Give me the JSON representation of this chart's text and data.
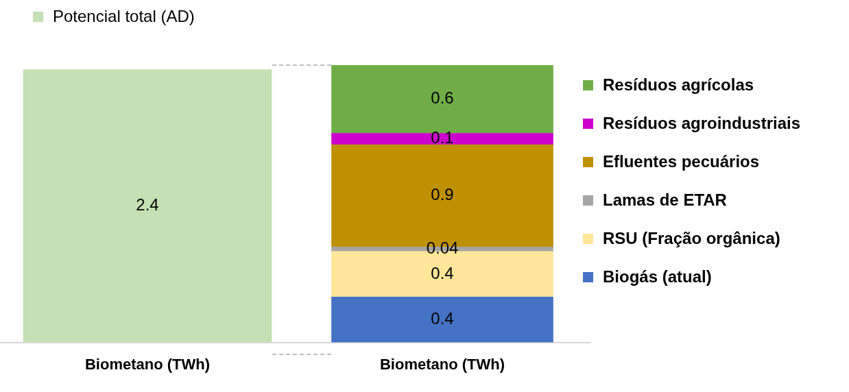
{
  "chart_data": {
    "type": "bar",
    "stacked": true,
    "categories": [
      "Biometano (TWh)",
      "Biometano (TWh)"
    ],
    "series": [
      {
        "name": "Potencial total (AD)",
        "color": "#c5e0b4",
        "values": [
          2.4,
          null
        ]
      },
      {
        "name": "Biogás (atual)",
        "color": "#4472c4",
        "values": [
          null,
          0.4
        ]
      },
      {
        "name": "RSU (Fração orgânica)",
        "color": "#ffe699",
        "values": [
          null,
          0.4
        ]
      },
      {
        "name": "Lamas de ETAR",
        "color": "#a5a5a5",
        "values": [
          null,
          0.04
        ]
      },
      {
        "name": "Efluentes pecuários",
        "color": "#bf9000",
        "values": [
          null,
          0.9
        ]
      },
      {
        "name": "Resíduos agroindustriais",
        "color": "#cc00cc",
        "values": [
          null,
          0.1
        ]
      },
      {
        "name": "Resíduos agrícolas",
        "color": "#70ad47",
        "values": [
          null,
          0.6
        ]
      }
    ],
    "data_labels": true,
    "legend": "right"
  }
}
